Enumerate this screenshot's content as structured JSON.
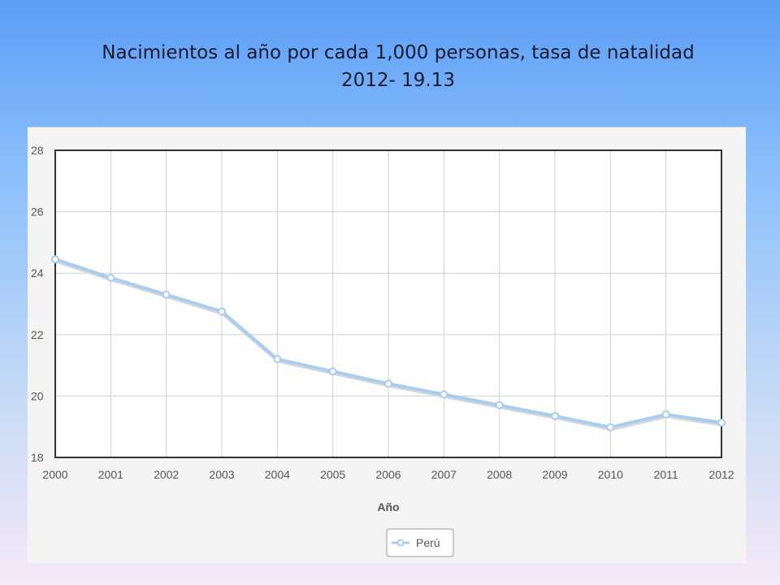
{
  "slide": {
    "title_line1": "Nacimientos al año por cada 1,000 personas, tasa de natalidad",
    "title_line2": "2012- 19.13"
  },
  "colors": {
    "line": "#a8cdf0",
    "marker_fill": "#ffffff",
    "marker_stroke": "#a8cdf0",
    "grid": "#cfcfcf",
    "plot_border": "#333333"
  },
  "chart_data": {
    "type": "line",
    "x": [
      "2000",
      "2001",
      "2002",
      "2003",
      "2004",
      "2005",
      "2006",
      "2007",
      "2008",
      "2009",
      "2010",
      "2011",
      "2012"
    ],
    "series": [
      {
        "name": "Perú",
        "values": [
          24.45,
          23.85,
          23.3,
          22.75,
          21.2,
          20.8,
          20.4,
          20.05,
          19.7,
          19.35,
          18.98,
          19.4,
          19.13
        ]
      }
    ],
    "xlabel": "Año",
    "ylabel": "",
    "ylim": [
      18,
      28
    ],
    "yticks": [
      18,
      20,
      22,
      24,
      26,
      28
    ],
    "grid": true,
    "legend": "bottom-center"
  }
}
